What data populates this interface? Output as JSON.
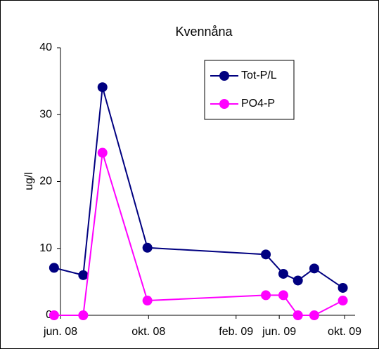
{
  "chart_data": {
    "type": "line",
    "title": "Kvennåna",
    "y_label": "ug/l",
    "x": [
      39589,
      39639,
      39672,
      39749,
      39952,
      39982,
      40007,
      40035,
      40084
    ],
    "series": [
      {
        "name": "Tot-P/L",
        "color": "#000080",
        "values": [
          7.1,
          6,
          34.1,
          10.1,
          9.1,
          6.2,
          5.2,
          7,
          4.1
        ]
      },
      {
        "name": "PO4-P",
        "color": "#ff00ff",
        "values": [
          0,
          0,
          24.3,
          2.2,
          3,
          3,
          0,
          0,
          2.2
        ]
      }
    ],
    "xlim": [
      39600,
      40105
    ],
    "xticks": [
      {
        "value": 39600,
        "label": "jun. 08"
      },
      {
        "value": 39751,
        "label": "okt. 08"
      },
      {
        "value": 39901,
        "label": "feb. 09"
      },
      {
        "value": 39975,
        "label": "jun. 09"
      },
      {
        "value": 40087,
        "label": "okt. 09"
      }
    ],
    "ylim": [
      0,
      40
    ],
    "yticks": [
      0,
      10,
      20,
      30,
      40
    ],
    "grid": false,
    "legend": "upper right"
  }
}
